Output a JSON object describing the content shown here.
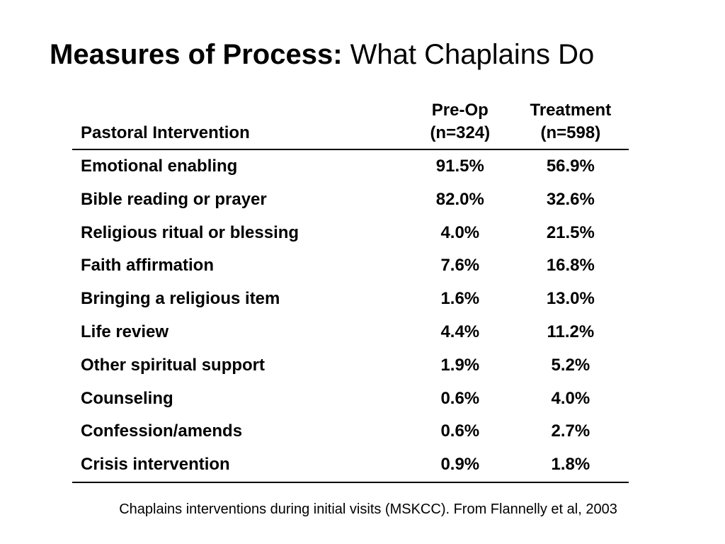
{
  "title": {
    "bold": "Measures of Process:",
    "normal": "What Chaplains Do"
  },
  "table": {
    "headers": {
      "intervention": "Pastoral Intervention",
      "preop_line1": "Pre-Op",
      "preop_line2": "(n=324)",
      "treatment_line1": "Treatment",
      "treatment_line2": "(n=598)"
    },
    "rows": [
      {
        "label": "Emotional enabling",
        "preop": "91.5%",
        "treatment": "56.9%"
      },
      {
        "label": "Bible reading or prayer",
        "preop": "82.0%",
        "treatment": "32.6%"
      },
      {
        "label": "Religious ritual or blessing",
        "preop": "4.0%",
        "treatment": "21.5%"
      },
      {
        "label": "Faith affirmation",
        "preop": "7.6%",
        "treatment": "16.8%"
      },
      {
        "label": "Bringing a religious item",
        "preop": "1.6%",
        "treatment": "13.0%"
      },
      {
        "label": "Life review",
        "preop": "4.4%",
        "treatment": "11.2%"
      },
      {
        "label": "Other spiritual support",
        "preop": "1.9%",
        "treatment": "5.2%"
      },
      {
        "label": "Counseling",
        "preop": "0.6%",
        "treatment": "4.0%"
      },
      {
        "label": "Confession/amends",
        "preop": "0.6%",
        "treatment": "2.7%"
      },
      {
        "label": "Crisis intervention",
        "preop": "0.9%",
        "treatment": "1.8%"
      }
    ]
  },
  "caption": "Chaplains interventions during initial visits (MSKCC). From Flannelly et al, 2003"
}
